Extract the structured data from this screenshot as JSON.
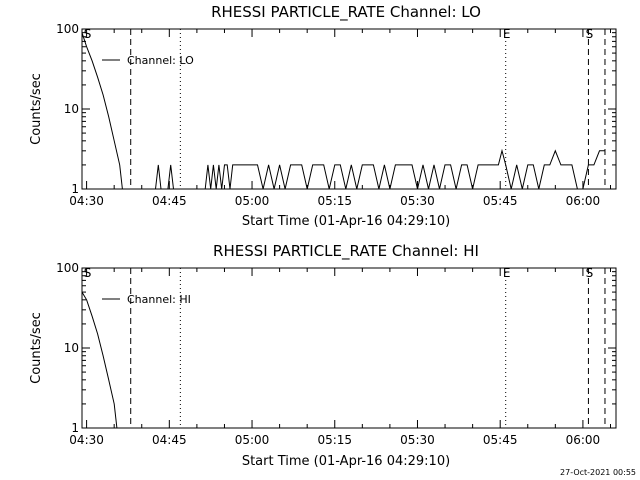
{
  "footer_timestamp": "27-Oct-2021 00:55",
  "chart_data": [
    {
      "type": "line",
      "title": "RHESSI PARTICLE_RATE Channel: LO",
      "xlabel": "Start Time (01-Apr-16 04:29:10)",
      "ylabel": "Counts/sec",
      "y_scale": "log",
      "xlim": [
        "04:29:10",
        "06:06:00"
      ],
      "ylim": [
        1,
        100
      ],
      "x_ticks": [
        "04:30",
        "04:45",
        "05:00",
        "05:15",
        "05:30",
        "05:45",
        "06:00"
      ],
      "y_ticks": [
        "1",
        "10",
        "100"
      ],
      "legend": {
        "entry": "Channel: LO",
        "placement": "top-left"
      },
      "grid": false,
      "markers": [
        {
          "time": "04:30",
          "label": "S",
          "style": "none"
        },
        {
          "time": "04:38",
          "label": "",
          "style": "dashed"
        },
        {
          "time": "04:47",
          "label": "",
          "style": "dotted"
        },
        {
          "time": "05:46",
          "label": "E",
          "style": "dotted"
        },
        {
          "time": "06:01",
          "label": "S",
          "style": "dashed"
        },
        {
          "time": "06:04",
          "label": "",
          "style": "dashed"
        }
      ],
      "series": [
        {
          "name": "Channel: LO",
          "x": [
            "04:29:10",
            "04:30:00",
            "04:31:00",
            "04:32:00",
            "04:33:00",
            "04:34:00",
            "04:35:00",
            "04:36:00",
            "04:36:30",
            "04:42:30",
            "04:43:00",
            "04:43:30",
            "04:44:45",
            "04:45:15",
            "04:45:45",
            "04:51:30",
            "04:52:00",
            "04:52:30",
            "04:53:00",
            "04:53:30",
            "04:54:00",
            "04:54:30",
            "04:55:00",
            "04:55:30",
            "04:56:00",
            "04:56:30",
            "04:57:00",
            "04:58:00",
            "04:59:00",
            "05:00:00",
            "05:01:00",
            "05:02:00",
            "05:03:00",
            "05:04:00",
            "05:05:00",
            "05:06:00",
            "05:07:00",
            "05:08:00",
            "05:09:00",
            "05:10:00",
            "05:11:00",
            "05:12:00",
            "05:13:00",
            "05:14:00",
            "05:15:00",
            "05:16:00",
            "05:17:00",
            "05:18:00",
            "05:19:00",
            "05:20:00",
            "05:21:00",
            "05:22:00",
            "05:23:00",
            "05:24:00",
            "05:25:00",
            "05:26:00",
            "05:27:00",
            "05:28:00",
            "05:29:00",
            "05:30:00",
            "05:31:00",
            "05:32:00",
            "05:33:00",
            "05:34:00",
            "05:35:00",
            "05:36:00",
            "05:37:00",
            "05:38:00",
            "05:39:00",
            "05:40:00",
            "05:41:00",
            "05:42:00",
            "05:43:00",
            "05:44:00",
            "05:44:40",
            "05:45:20",
            "05:46:00",
            "05:47:00",
            "05:48:00",
            "05:49:00",
            "05:50:00",
            "05:51:00",
            "05:52:00",
            "05:53:00",
            "05:54:00",
            "05:55:00",
            "05:56:00",
            "05:57:00",
            "05:58:00",
            "05:59:00",
            "06:00:00",
            "06:01:00",
            "06:02:00",
            "06:03:00",
            "06:04:00"
          ],
          "values": [
            90,
            60,
            40,
            25,
            15,
            8,
            4,
            2,
            1,
            1,
            2,
            1,
            1,
            2,
            1,
            1,
            2,
            1,
            2,
            1,
            2,
            1,
            2,
            2,
            1,
            2,
            2,
            2,
            2,
            2,
            2,
            1,
            2,
            1,
            2,
            1,
            2,
            2,
            2,
            1,
            2,
            2,
            2,
            1,
            2,
            2,
            1,
            2,
            1,
            2,
            2,
            2,
            1,
            2,
            1,
            2,
            2,
            2,
            2,
            1,
            2,
            1,
            2,
            1,
            2,
            2,
            1,
            2,
            2,
            1,
            2,
            2,
            2,
            2,
            2,
            3,
            2,
            1,
            2,
            1,
            2,
            2,
            1,
            2,
            2,
            3,
            2,
            2,
            2,
            1,
            1,
            2,
            2,
            3,
            3
          ]
        }
      ]
    },
    {
      "type": "line",
      "title": "RHESSI PARTICLE_RATE Channel: HI",
      "xlabel": "Start Time (01-Apr-16 04:29:10)",
      "ylabel": "Counts/sec",
      "y_scale": "log",
      "xlim": [
        "04:29:10",
        "06:06:00"
      ],
      "ylim": [
        1,
        100
      ],
      "x_ticks": [
        "04:30",
        "04:45",
        "05:00",
        "05:15",
        "05:30",
        "05:45",
        "06:00"
      ],
      "y_ticks": [
        "1",
        "10",
        "100"
      ],
      "legend": {
        "entry": "Channel: HI",
        "placement": "top-left"
      },
      "grid": false,
      "markers": [
        {
          "time": "04:30",
          "label": "S",
          "style": "none"
        },
        {
          "time": "04:38",
          "label": "",
          "style": "dashed"
        },
        {
          "time": "04:47",
          "label": "",
          "style": "dotted"
        },
        {
          "time": "05:46",
          "label": "E",
          "style": "dotted"
        },
        {
          "time": "06:01",
          "label": "S",
          "style": "dashed"
        },
        {
          "time": "06:04",
          "label": "",
          "style": "dashed"
        }
      ],
      "series": [
        {
          "name": "Channel: HI",
          "x": [
            "04:29:10",
            "04:30:00",
            "04:31:00",
            "04:32:00",
            "04:33:00",
            "04:34:00",
            "04:35:00",
            "04:35:30"
          ],
          "values": [
            50,
            40,
            25,
            15,
            8,
            4,
            2,
            1
          ]
        }
      ]
    }
  ]
}
